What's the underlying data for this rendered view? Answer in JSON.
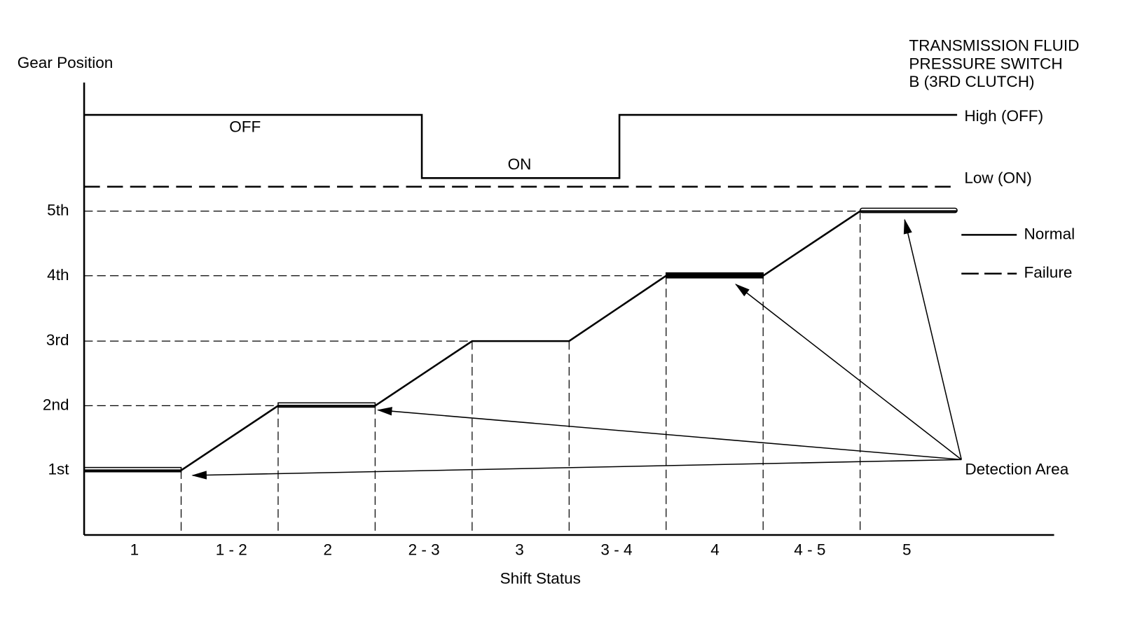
{
  "y_axis_label": "Gear Position",
  "x_axis_label": "Shift Status",
  "switch_title": [
    "TRANSMISSION FLUID",
    "PRESSURE SWITCH",
    "B (3RD CLUTCH)"
  ],
  "switch_levels": {
    "high": "High (OFF)",
    "low": "Low (ON)"
  },
  "switch_states": [
    "OFF",
    "ON"
  ],
  "gears": [
    "1st",
    "2nd",
    "3rd",
    "4th",
    "5th"
  ],
  "shift_status": [
    "1",
    "1 - 2",
    "2",
    "2 - 3",
    "3",
    "3 - 4",
    "4",
    "4 - 5",
    "5"
  ],
  "legend": [
    "Normal",
    "Failure"
  ],
  "annotation": "Detection Area"
}
